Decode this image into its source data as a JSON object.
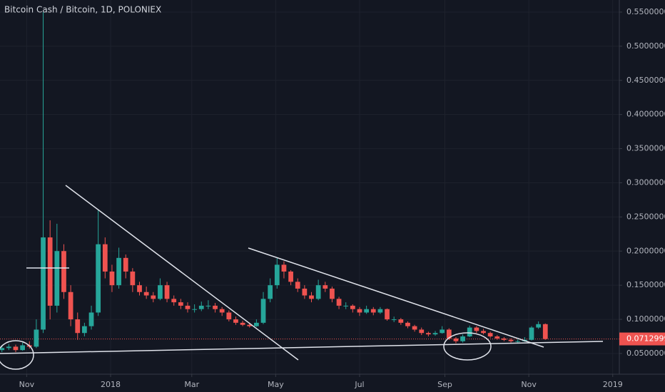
{
  "chart_data": {
    "type": "candlestick",
    "title": "Bitcoin Cash / Bitcoin, 1D, POLONIEX",
    "up_color": "#26a69a",
    "down_color": "#ef5350",
    "grid": true,
    "xlim": [
      -19.4,
      430.8
    ],
    "xticks": [
      {
        "value": 0,
        "label": "Nov"
      },
      {
        "value": 61,
        "label": "2018"
      },
      {
        "value": 120,
        "label": "Mar"
      },
      {
        "value": 181,
        "label": "May"
      },
      {
        "value": 242,
        "label": "Jul"
      },
      {
        "value": 304,
        "label": "Sep"
      },
      {
        "value": 365,
        "label": "Nov"
      },
      {
        "value": 426,
        "label": "2019"
      }
    ],
    "ylim": [
      0.0197,
      0.5677
    ],
    "yticks": [
      {
        "value": 0.05,
        "label": "0.05000000"
      },
      {
        "value": 0.1,
        "label": "0.10000000"
      },
      {
        "value": 0.15,
        "label": "0.15000000"
      },
      {
        "value": 0.2,
        "label": "0.20000000"
      },
      {
        "value": 0.25,
        "label": "0.25000000"
      },
      {
        "value": 0.3,
        "label": "0.30000000"
      },
      {
        "value": 0.35,
        "label": "0.35000000"
      },
      {
        "value": 0.4,
        "label": "0.40000000"
      },
      {
        "value": 0.45,
        "label": "0.45000000"
      },
      {
        "value": 0.5,
        "label": "0.50000000"
      },
      {
        "value": 0.55,
        "label": "0.55000000"
      }
    ],
    "last_price": 0.07129999,
    "x": [
      -18,
      -13,
      -8,
      -3,
      2,
      7,
      12,
      17,
      22,
      27,
      32,
      37,
      42,
      47,
      52,
      57,
      62,
      67,
      72,
      77,
      82,
      87,
      92,
      97,
      102,
      107,
      112,
      117,
      122,
      127,
      132,
      137,
      142,
      147,
      152,
      157,
      162,
      167,
      172,
      177,
      182,
      187,
      192,
      197,
      202,
      207,
      212,
      217,
      222,
      227,
      232,
      237,
      242,
      247,
      252,
      257,
      262,
      267,
      272,
      277,
      282,
      287,
      292,
      297,
      302,
      307,
      312,
      317,
      322,
      327,
      332,
      337,
      342,
      347,
      352,
      357,
      362,
      367,
      372,
      377
    ],
    "ohlc": [
      [
        0.055,
        0.062,
        0.052,
        0.058
      ],
      [
        0.058,
        0.064,
        0.055,
        0.06
      ],
      [
        0.06,
        0.063,
        0.052,
        0.055
      ],
      [
        0.055,
        0.066,
        0.054,
        0.062
      ],
      [
        0.062,
        0.068,
        0.057,
        0.06
      ],
      [
        0.06,
        0.1,
        0.058,
        0.085
      ],
      [
        0.085,
        0.55,
        0.08,
        0.22
      ],
      [
        0.22,
        0.245,
        0.1,
        0.12
      ],
      [
        0.12,
        0.24,
        0.11,
        0.2
      ],
      [
        0.2,
        0.21,
        0.13,
        0.14
      ],
      [
        0.14,
        0.15,
        0.09,
        0.1
      ],
      [
        0.1,
        0.11,
        0.07,
        0.08
      ],
      [
        0.08,
        0.095,
        0.075,
        0.09
      ],
      [
        0.09,
        0.12,
        0.085,
        0.11
      ],
      [
        0.11,
        0.26,
        0.105,
        0.21
      ],
      [
        0.21,
        0.22,
        0.16,
        0.17
      ],
      [
        0.17,
        0.18,
        0.14,
        0.15
      ],
      [
        0.15,
        0.205,
        0.145,
        0.19
      ],
      [
        0.19,
        0.195,
        0.16,
        0.17
      ],
      [
        0.17,
        0.175,
        0.14,
        0.15
      ],
      [
        0.15,
        0.155,
        0.135,
        0.14
      ],
      [
        0.14,
        0.148,
        0.13,
        0.135
      ],
      [
        0.135,
        0.14,
        0.125,
        0.13
      ],
      [
        0.13,
        0.16,
        0.128,
        0.15
      ],
      [
        0.15,
        0.155,
        0.125,
        0.13
      ],
      [
        0.13,
        0.135,
        0.12,
        0.125
      ],
      [
        0.125,
        0.13,
        0.115,
        0.12
      ],
      [
        0.12,
        0.125,
        0.11,
        0.115
      ],
      [
        0.115,
        0.122,
        0.11,
        0.115
      ],
      [
        0.115,
        0.126,
        0.112,
        0.12
      ],
      [
        0.12,
        0.128,
        0.115,
        0.12
      ],
      [
        0.12,
        0.124,
        0.11,
        0.115
      ],
      [
        0.115,
        0.118,
        0.105,
        0.11
      ],
      [
        0.11,
        0.113,
        0.097,
        0.1
      ],
      [
        0.1,
        0.104,
        0.092,
        0.095
      ],
      [
        0.095,
        0.098,
        0.09,
        0.092
      ],
      [
        0.092,
        0.095,
        0.088,
        0.09
      ],
      [
        0.09,
        0.1,
        0.089,
        0.095
      ],
      [
        0.095,
        0.14,
        0.093,
        0.13
      ],
      [
        0.13,
        0.16,
        0.125,
        0.15
      ],
      [
        0.15,
        0.19,
        0.145,
        0.18
      ],
      [
        0.18,
        0.185,
        0.16,
        0.17
      ],
      [
        0.17,
        0.172,
        0.15,
        0.155
      ],
      [
        0.155,
        0.16,
        0.14,
        0.145
      ],
      [
        0.145,
        0.15,
        0.13,
        0.135
      ],
      [
        0.135,
        0.14,
        0.125,
        0.13
      ],
      [
        0.13,
        0.158,
        0.128,
        0.15
      ],
      [
        0.15,
        0.155,
        0.14,
        0.145
      ],
      [
        0.145,
        0.148,
        0.125,
        0.13
      ],
      [
        0.13,
        0.133,
        0.115,
        0.12
      ],
      [
        0.12,
        0.125,
        0.115,
        0.12
      ],
      [
        0.12,
        0.122,
        0.11,
        0.115
      ],
      [
        0.115,
        0.118,
        0.105,
        0.11
      ],
      [
        0.11,
        0.12,
        0.108,
        0.115
      ],
      [
        0.115,
        0.118,
        0.106,
        0.11
      ],
      [
        0.11,
        0.118,
        0.108,
        0.115
      ],
      [
        0.115,
        0.116,
        0.098,
        0.1
      ],
      [
        0.1,
        0.104,
        0.096,
        0.1
      ],
      [
        0.1,
        0.102,
        0.092,
        0.095
      ],
      [
        0.095,
        0.097,
        0.087,
        0.09
      ],
      [
        0.09,
        0.092,
        0.082,
        0.085
      ],
      [
        0.085,
        0.088,
        0.077,
        0.08
      ],
      [
        0.08,
        0.082,
        0.075,
        0.078
      ],
      [
        0.078,
        0.083,
        0.076,
        0.08
      ],
      [
        0.08,
        0.09,
        0.079,
        0.085
      ],
      [
        0.085,
        0.087,
        0.07,
        0.072
      ],
      [
        0.072,
        0.074,
        0.065,
        0.068
      ],
      [
        0.068,
        0.078,
        0.066,
        0.075
      ],
      [
        0.075,
        0.091,
        0.074,
        0.088
      ],
      [
        0.088,
        0.09,
        0.08,
        0.083
      ],
      [
        0.083,
        0.086,
        0.078,
        0.08
      ],
      [
        0.08,
        0.082,
        0.073,
        0.075
      ],
      [
        0.075,
        0.077,
        0.07,
        0.072
      ],
      [
        0.072,
        0.074,
        0.068,
        0.07
      ],
      [
        0.07,
        0.072,
        0.066,
        0.068
      ],
      [
        0.068,
        0.071,
        0.066,
        0.068
      ],
      [
        0.068,
        0.074,
        0.067,
        0.07
      ],
      [
        0.07,
        0.09,
        0.069,
        0.088
      ],
      [
        0.088,
        0.097,
        0.086,
        0.093
      ],
      [
        0.093,
        0.094,
        0.07,
        0.07129999
      ]
    ]
  }
}
